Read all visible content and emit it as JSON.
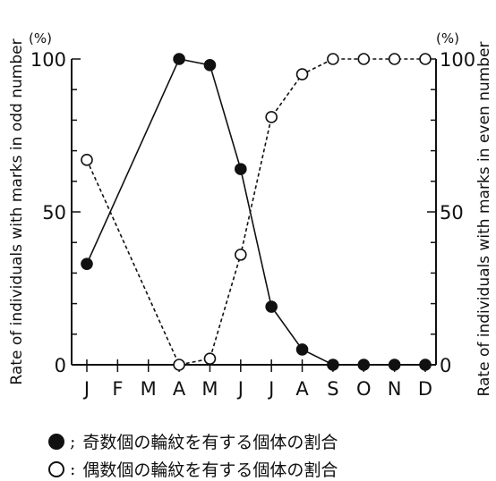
{
  "chart_data": {
    "type": "line",
    "categories": [
      "J",
      "F",
      "M",
      "A",
      "M",
      "J",
      "J",
      "A",
      "S",
      "O",
      "N",
      "D"
    ],
    "series": [
      {
        "name": "奇数個の輪紋を有する個体の割合",
        "marker": "filled",
        "style": "solid",
        "values": [
          33,
          null,
          null,
          100,
          98,
          64,
          19,
          5,
          0,
          0,
          0,
          0
        ]
      },
      {
        "name": "偶数個の輪紋を有する個体の割合",
        "marker": "open",
        "style": "dashed",
        "values": [
          67,
          null,
          null,
          0,
          2,
          36,
          81,
          95,
          100,
          100,
          100,
          100
        ]
      }
    ],
    "ylim": [
      0,
      100
    ],
    "yticks": [
      "0",
      "50",
      "100"
    ],
    "ylabel_left": "Rate of individuals with marks in odd number",
    "ylabel_right": "Rate of individuals with marks in even number",
    "unit_left": "(%)",
    "unit_right": "(%)",
    "grid": false,
    "legend_position": "bottom"
  },
  "legend": {
    "odd_sep": ";",
    "odd_text": "奇数個の輪紋を有する個体の割合",
    "even_sep": ":",
    "even_text": "偶数個の輪紋を有する個体の割合"
  },
  "colors": {
    "ink": "#111111",
    "background": "#ffffff"
  }
}
